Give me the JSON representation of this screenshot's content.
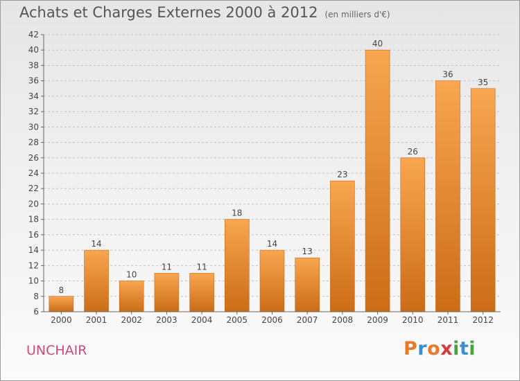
{
  "chart_data": {
    "type": "bar",
    "title": "Achats et Charges Externes 2000 à 2012",
    "subtitle": "(en milliers d'€)",
    "categories": [
      "2000",
      "2001",
      "2002",
      "2003",
      "2004",
      "2005",
      "2006",
      "2007",
      "2008",
      "2009",
      "2010",
      "2011",
      "2012"
    ],
    "values": [
      8,
      14,
      10,
      11,
      11,
      18,
      14,
      13,
      23,
      40,
      26,
      36,
      35
    ],
    "ylim": [
      6,
      42
    ],
    "yticks": [
      6,
      8,
      10,
      12,
      14,
      16,
      18,
      20,
      22,
      24,
      26,
      28,
      30,
      32,
      34,
      36,
      38,
      40,
      42
    ],
    "grid": true,
    "bar_color": "#f0922d"
  },
  "commune": "UNCHAIR",
  "logo": {
    "text": "Proxiti",
    "colors": [
      "#e8792a",
      "#3a8fd0",
      "#e8792a",
      "#d63a3a",
      "#49a33c",
      "#3a8fd0",
      "#49a33c"
    ]
  }
}
